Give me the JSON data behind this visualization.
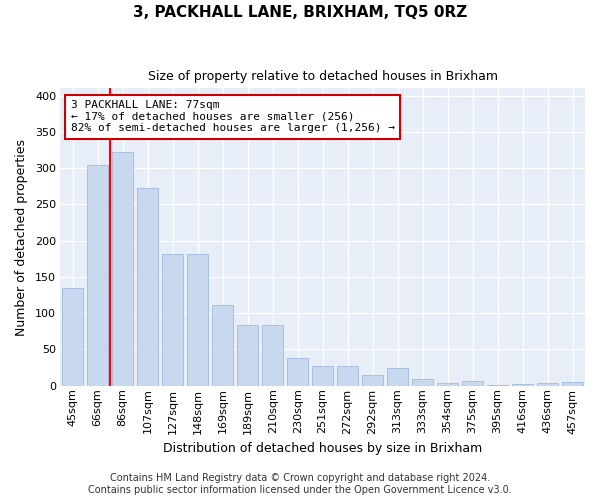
{
  "title": "3, PACKHALL LANE, BRIXHAM, TQ5 0RZ",
  "subtitle": "Size of property relative to detached houses in Brixham",
  "xlabel": "Distribution of detached houses by size in Brixham",
  "ylabel": "Number of detached properties",
  "categories": [
    "45sqm",
    "66sqm",
    "86sqm",
    "107sqm",
    "127sqm",
    "148sqm",
    "169sqm",
    "189sqm",
    "210sqm",
    "230sqm",
    "251sqm",
    "272sqm",
    "292sqm",
    "313sqm",
    "333sqm",
    "354sqm",
    "375sqm",
    "395sqm",
    "416sqm",
    "436sqm",
    "457sqm"
  ],
  "values": [
    135,
    305,
    322,
    272,
    182,
    182,
    112,
    84,
    84,
    38,
    27,
    27,
    15,
    25,
    9,
    4,
    6,
    1,
    2,
    4,
    5
  ],
  "bar_color": "#c8d8ef",
  "bar_edge_color": "#a8c0e0",
  "background_color": "#e8eef8",
  "grid_color": "#ffffff",
  "red_line_x": 1.5,
  "annotation_text": "3 PACKHALL LANE: 77sqm\n← 17% of detached houses are smaller (256)\n82% of semi-detached houses are larger (1,256) →",
  "annotation_box_edge": "#cc0000",
  "footer_text": "Contains HM Land Registry data © Crown copyright and database right 2024.\nContains public sector information licensed under the Open Government Licence v3.0.",
  "ylim_max": 410,
  "yticks": [
    0,
    50,
    100,
    150,
    200,
    250,
    300,
    350,
    400
  ],
  "title_fontsize": 11,
  "subtitle_fontsize": 9,
  "ylabel_fontsize": 9,
  "xlabel_fontsize": 9,
  "tick_fontsize": 8,
  "xtick_fontsize": 8,
  "annot_fontsize": 8,
  "footer_fontsize": 7
}
